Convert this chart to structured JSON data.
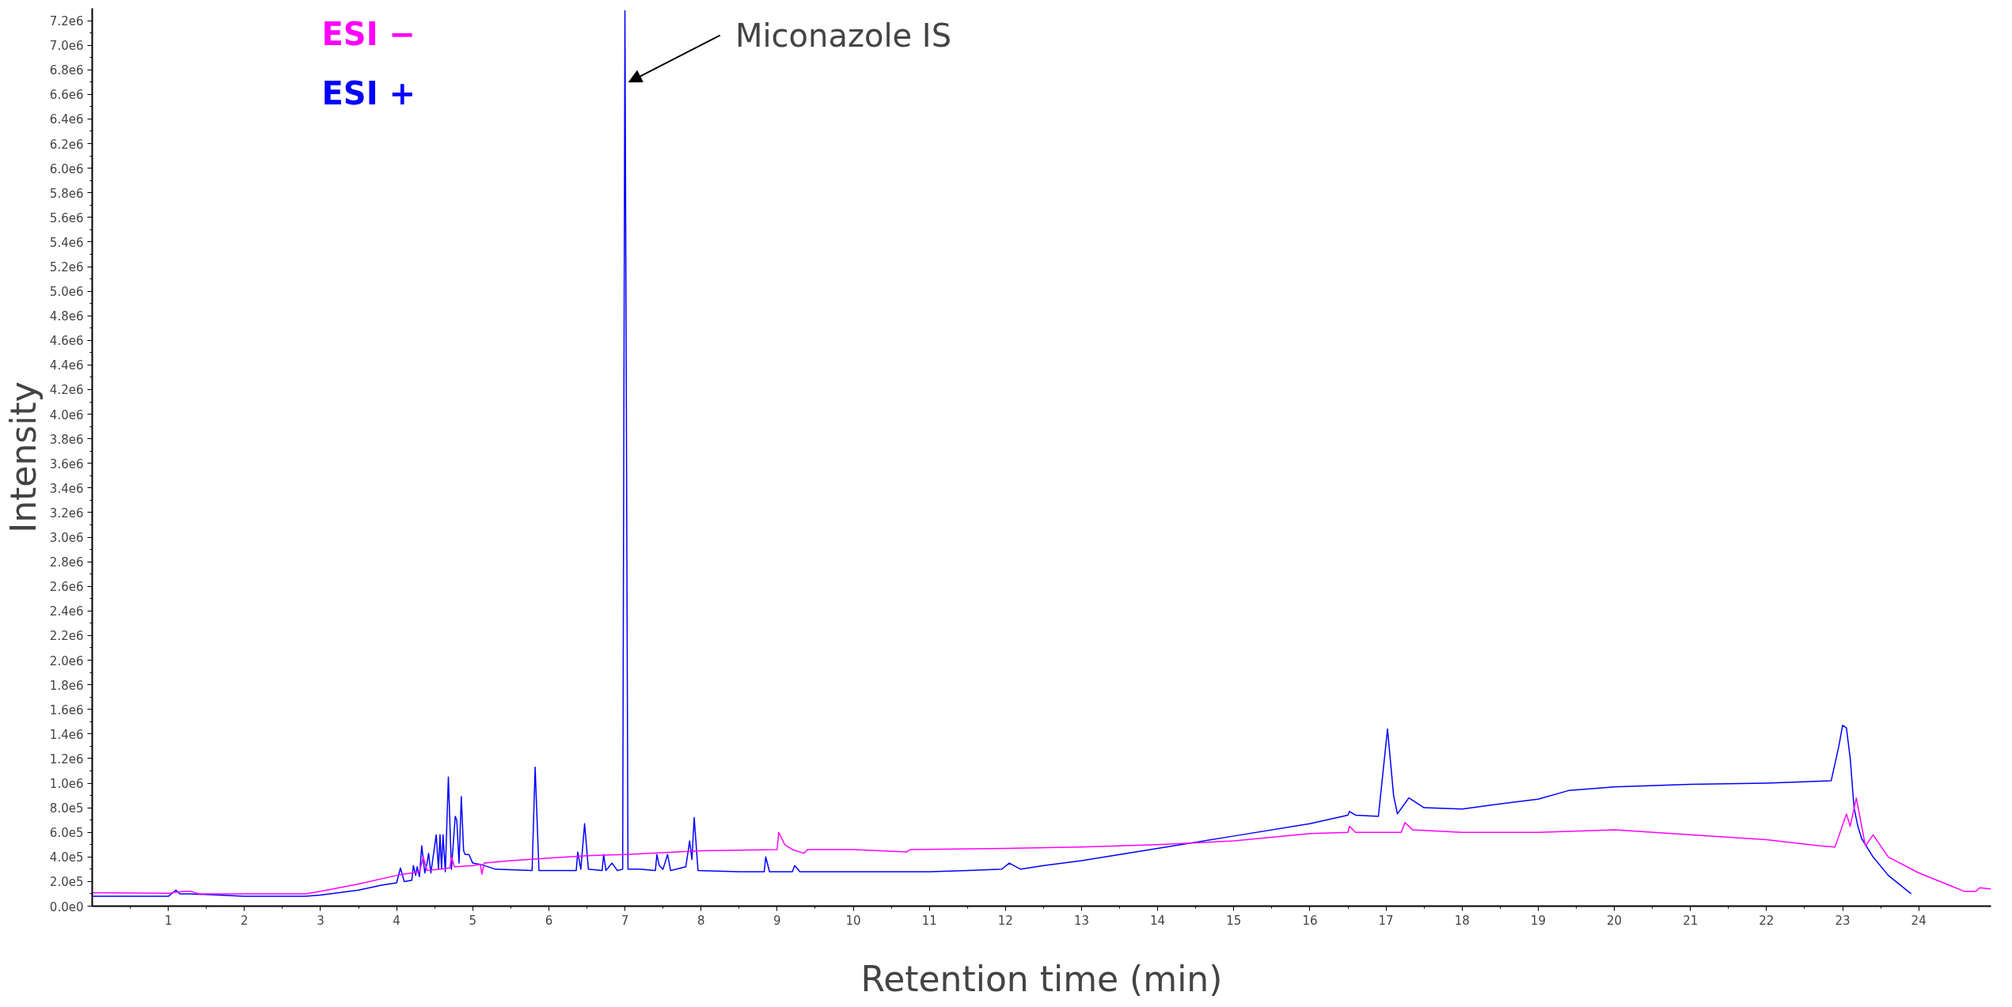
{
  "chart_data": {
    "type": "line",
    "xlabel": "Retention time (min)",
    "ylabel": "Intensity",
    "xlim": [
      0,
      24.95
    ],
    "xticks": [
      1,
      2,
      3,
      4,
      5,
      6,
      7,
      8,
      9,
      10,
      11,
      12,
      13,
      14,
      15,
      16,
      17,
      18,
      19,
      20,
      21,
      22,
      23,
      24
    ],
    "ylim": [
      0,
      7300000
    ],
    "yticks": [
      {
        "value": 0,
        "label": "0.0e0"
      },
      {
        "value": 200000,
        "label": "2.0e5"
      },
      {
        "value": 400000,
        "label": "4.0e5"
      },
      {
        "value": 600000,
        "label": "6.0e5"
      },
      {
        "value": 800000,
        "label": "8.0e5"
      },
      {
        "value": 1000000,
        "label": "1.0e6"
      },
      {
        "value": 1200000,
        "label": "1.2e6"
      },
      {
        "value": 1400000,
        "label": "1.4e6"
      },
      {
        "value": 1600000,
        "label": "1.6e6"
      },
      {
        "value": 1800000,
        "label": "1.8e6"
      },
      {
        "value": 2000000,
        "label": "2.0e6"
      },
      {
        "value": 2200000,
        "label": "2.2e6"
      },
      {
        "value": 2400000,
        "label": "2.4e6"
      },
      {
        "value": 2600000,
        "label": "2.6e6"
      },
      {
        "value": 2800000,
        "label": "2.8e6"
      },
      {
        "value": 3000000,
        "label": "3.0e6"
      },
      {
        "value": 3200000,
        "label": "3.2e6"
      },
      {
        "value": 3400000,
        "label": "3.4e6"
      },
      {
        "value": 3600000,
        "label": "3.6e6"
      },
      {
        "value": 3800000,
        "label": "3.8e6"
      },
      {
        "value": 4000000,
        "label": "4.0e6"
      },
      {
        "value": 4200000,
        "label": "4.2e6"
      },
      {
        "value": 4400000,
        "label": "4.4e6"
      },
      {
        "value": 4600000,
        "label": "4.6e6"
      },
      {
        "value": 4800000,
        "label": "4.8e6"
      },
      {
        "value": 5000000,
        "label": "5.0e6"
      },
      {
        "value": 5200000,
        "label": "5.2e6"
      },
      {
        "value": 5400000,
        "label": "5.4e6"
      },
      {
        "value": 5600000,
        "label": "5.6e6"
      },
      {
        "value": 5800000,
        "label": "5.8e6"
      },
      {
        "value": 6000000,
        "label": "6.0e6"
      },
      {
        "value": 6200000,
        "label": "6.2e6"
      },
      {
        "value": 6400000,
        "label": "6.4e6"
      },
      {
        "value": 6600000,
        "label": "6.6e6"
      },
      {
        "value": 6800000,
        "label": "6.8e6"
      },
      {
        "value": 7000000,
        "label": "7.0e6"
      },
      {
        "value": 7200000,
        "label": "7.2e6"
      }
    ],
    "grid": false,
    "marker": "none",
    "line_style": "solid",
    "annotations": [
      {
        "text": "Miconazole IS",
        "x": 7.05,
        "y": 6700000
      }
    ],
    "series": [
      {
        "name": "ESI −",
        "color": "#ff00ff",
        "x": [
          0,
          1,
          1.2,
          1.3,
          1.4,
          2,
          2.8,
          3.0,
          3.5,
          4.0,
          4.3,
          4.35,
          4.4,
          4.7,
          4.72,
          4.76,
          5.0,
          5.1,
          5.12,
          5.15,
          5.5,
          6,
          6.5,
          7,
          8,
          9.0,
          9.02,
          9.1,
          9.2,
          9.35,
          9.4,
          10,
          10.7,
          10.75,
          12,
          13,
          14,
          15,
          16,
          16.5,
          16.52,
          16.6,
          17.2,
          17.25,
          17.35,
          18,
          19,
          20,
          21,
          22,
          22.7,
          22.9,
          23.05,
          23.1,
          23.18,
          23.25,
          23.3,
          23.4,
          23.6,
          24,
          24.4,
          24.6,
          24.75,
          24.8,
          24.95
        ],
        "values": [
          110000,
          105000,
          120000,
          120000,
          100000,
          100000,
          100000,
          120000,
          180000,
          250000,
          280000,
          400000,
          290000,
          310000,
          400000,
          320000,
          330000,
          340000,
          260000,
          350000,
          370000,
          390000,
          410000,
          420000,
          450000,
          460000,
          600000,
          500000,
          460000,
          430000,
          460000,
          460000,
          440000,
          460000,
          470000,
          480000,
          500000,
          530000,
          590000,
          600000,
          650000,
          600000,
          600000,
          680000,
          620000,
          600000,
          600000,
          620000,
          580000,
          540000,
          490000,
          480000,
          750000,
          650000,
          880000,
          650000,
          490000,
          580000,
          400000,
          270000,
          170000,
          120000,
          120000,
          150000,
          140000
        ]
      },
      {
        "name": "ESI +",
        "color": "#0000ff",
        "x": [
          0,
          1,
          1.1,
          1.15,
          1.28,
          2,
          2.8,
          3,
          3.5,
          3.8,
          4.0,
          4.05,
          4.1,
          4.2,
          4.22,
          4.25,
          4.27,
          4.3,
          4.33,
          4.37,
          4.4,
          4.42,
          4.45,
          4.52,
          4.55,
          4.57,
          4.59,
          4.61,
          4.64,
          4.68,
          4.72,
          4.77,
          4.79,
          4.82,
          4.85,
          4.88,
          4.9,
          4.95,
          5.0,
          5.1,
          5.3,
          5.78,
          5.82,
          5.87,
          6.36,
          6.38,
          6.42,
          6.47,
          6.52,
          6.7,
          6.72,
          6.75,
          6.83,
          6.9,
          6.97,
          7.0,
          7.04,
          7.2,
          7.4,
          7.42,
          7.45,
          7.5,
          7.56,
          7.6,
          7.8,
          7.85,
          7.88,
          7.91,
          7.96,
          8.5,
          8.83,
          8.85,
          8.9,
          9.2,
          9.23,
          9.3,
          10,
          11,
          11.5,
          11.95,
          12.05,
          12.2,
          12.5,
          13,
          14,
          15,
          16,
          16.5,
          16.52,
          16.6,
          16.9,
          17.02,
          17.1,
          17.15,
          17.3,
          17.5,
          18,
          18.6,
          19,
          19.4,
          20,
          21,
          22,
          22.85,
          22.95,
          23.0,
          23.05,
          23.1,
          23.15,
          23.2,
          23.25,
          23.4,
          23.6,
          23.9
        ],
        "values": [
          80000,
          80000,
          130000,
          100000,
          100000,
          80000,
          80000,
          90000,
          130000,
          170000,
          190000,
          310000,
          200000,
          210000,
          330000,
          250000,
          320000,
          240000,
          490000,
          270000,
          350000,
          430000,
          270000,
          580000,
          300000,
          580000,
          300000,
          580000,
          280000,
          1050000,
          300000,
          730000,
          700000,
          350000,
          890000,
          450000,
          420000,
          420000,
          350000,
          340000,
          300000,
          290000,
          1130000,
          290000,
          290000,
          440000,
          300000,
          670000,
          300000,
          290000,
          420000,
          290000,
          350000,
          290000,
          300000,
          7280000,
          300000,
          300000,
          290000,
          420000,
          330000,
          300000,
          420000,
          290000,
          320000,
          530000,
          380000,
          720000,
          290000,
          280000,
          280000,
          400000,
          280000,
          280000,
          330000,
          280000,
          280000,
          280000,
          290000,
          300000,
          350000,
          300000,
          330000,
          370000,
          470000,
          570000,
          670000,
          740000,
          770000,
          740000,
          730000,
          1440000,
          900000,
          750000,
          880000,
          800000,
          790000,
          840000,
          870000,
          940000,
          970000,
          990000,
          1000000,
          1020000,
          1300000,
          1470000,
          1450000,
          1200000,
          800000,
          650000,
          550000,
          400000,
          250000,
          100000
        ]
      }
    ]
  }
}
